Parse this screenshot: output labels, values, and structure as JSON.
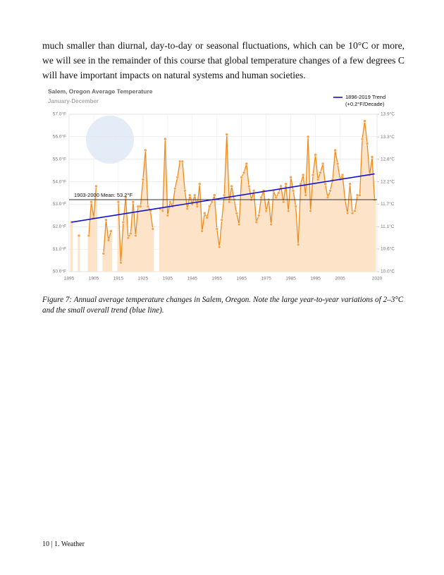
{
  "paragraph": "much smaller than diurnal, day-to-day or seasonal fluctuations, which can be 10°C or more, we will see in the remainder of this course that global temperature changes of a few degrees C will have important impacts on natural systems and human societies.",
  "chart_data": {
    "type": "line",
    "title": "Salem, Oregon Average Temperature",
    "subtitle": "January-December",
    "x": [
      1896,
      1897,
      1898,
      1899,
      1900,
      1901,
      1902,
      1903,
      1904,
      1905,
      1906,
      1907,
      1908,
      1909,
      1910,
      1911,
      1912,
      1913,
      1914,
      1915,
      1916,
      1917,
      1918,
      1919,
      1920,
      1921,
      1922,
      1923,
      1924,
      1925,
      1926,
      1927,
      1928,
      1929,
      1930,
      1931,
      1932,
      1933,
      1934,
      1935,
      1936,
      1937,
      1938,
      1939,
      1940,
      1941,
      1942,
      1943,
      1944,
      1945,
      1946,
      1947,
      1948,
      1949,
      1950,
      1951,
      1952,
      1953,
      1954,
      1955,
      1956,
      1957,
      1958,
      1959,
      1960,
      1961,
      1962,
      1963,
      1964,
      1965,
      1966,
      1967,
      1968,
      1969,
      1970,
      1971,
      1972,
      1973,
      1974,
      1975,
      1976,
      1977,
      1978,
      1979,
      1980,
      1981,
      1982,
      1983,
      1984,
      1985,
      1986,
      1987,
      1988,
      1989,
      1990,
      1991,
      1992,
      1993,
      1994,
      1995,
      1996,
      1997,
      1998,
      1999,
      2000,
      2001,
      2002,
      2003,
      2004,
      2005,
      2006,
      2007,
      2008,
      2009,
      2010,
      2011,
      2012,
      2013,
      2014,
      2015,
      2016,
      2017,
      2018,
      2019
    ],
    "series": [
      {
        "name": "Annual average",
        "color": "#f08a1c",
        "values": [
          52.2,
          null,
          null,
          51.6,
          null,
          null,
          null,
          51.6,
          53.1,
          52.4,
          53.8,
          null,
          null,
          50.8,
          52.3,
          51.4,
          51.8,
          null,
          null,
          53.1,
          50.4,
          52.2,
          53.3,
          51.5,
          51.7,
          53.1,
          51.6,
          52.9,
          52.9,
          54.1,
          55.4,
          52.9,
          52.7,
          51.9,
          null,
          null,
          52.8,
          52.7,
          55.9,
          52.5,
          53.1,
          52.9,
          53.7,
          54.2,
          54.9,
          54.9,
          53.6,
          52.8,
          53.4,
          53.0,
          53.4,
          52.9,
          53.9,
          51.8,
          52.6,
          52.4,
          52.9,
          53.1,
          53.4,
          51.9,
          51.1,
          52.3,
          53.4,
          56.1,
          53.1,
          53.8,
          53.2,
          52.6,
          52.1,
          54.2,
          54.4,
          54.8,
          53.8,
          53.2,
          53.6,
          52.2,
          52.5,
          53.3,
          53.6,
          52.7,
          53.2,
          52.1,
          53.6,
          53.3,
          53.5,
          53.8,
          53.1,
          53.9,
          52.7,
          54.2,
          53.6,
          52.9,
          51.2,
          53.9,
          54.3,
          53.4,
          56.0,
          52.7,
          54.3,
          55.2,
          54.1,
          54.4,
          54.8,
          53.9,
          53.3,
          53.6,
          54.1,
          55.4,
          54.8,
          54.1,
          54.3,
          53.2,
          52.6,
          53.9,
          52.6,
          52.7,
          53.4,
          53.4,
          55.9,
          56.7,
          55.7,
          54.3,
          55.1,
          53.2
        ]
      }
    ],
    "trend": {
      "name": "1896-2019 Trend",
      "note": "(+0.2°F/Decade)",
      "color": "#1010d0",
      "x": [
        1896,
        2019
      ],
      "values": [
        52.2,
        54.35
      ]
    },
    "mean": {
      "label": "1903-2000 Mean: 53.2°F",
      "value": 53.2
    },
    "xlim": [
      1895,
      2020
    ],
    "xticks": [
      1895,
      1905,
      1915,
      1925,
      1935,
      1945,
      1955,
      1965,
      1975,
      1985,
      1995,
      2005,
      2020
    ],
    "ylim": [
      50,
      57
    ],
    "yticks": [
      {
        "value": 50,
        "label": "50.0°F"
      },
      {
        "value": 51,
        "label": "51.0°F"
      },
      {
        "value": 52,
        "label": "52.0°F"
      },
      {
        "value": 53,
        "label": "53.0°F"
      },
      {
        "value": 54,
        "label": "54.0°F"
      },
      {
        "value": 55,
        "label": "55.0°F"
      },
      {
        "value": 56,
        "label": "56.0°F"
      },
      {
        "value": 57,
        "label": "57.0°F"
      }
    ],
    "y2lim": [
      10,
      13.89
    ],
    "y2ticks": [
      {
        "value": 10,
        "label": "10.0°C"
      },
      {
        "value": 10.56,
        "label": "10.6°C"
      },
      {
        "value": 11.11,
        "label": "11.1°C"
      },
      {
        "value": 11.67,
        "label": "11.7°C"
      },
      {
        "value": 12.22,
        "label": "12.2°C"
      },
      {
        "value": 12.78,
        "label": "12.8°C"
      },
      {
        "value": 13.33,
        "label": "13.3°C"
      },
      {
        "value": 13.89,
        "label": "13.9°C"
      }
    ],
    "grid": true,
    "legend": "top-right",
    "area_color": "#fde3c8"
  },
  "caption": "Figure 7: Annual average temperature changes in Salem, Oregon. Note the large year-to-year variations of 2–3°C and the small overall trend (blue line).",
  "footer": {
    "page": "10",
    "section": "1. Weather"
  }
}
